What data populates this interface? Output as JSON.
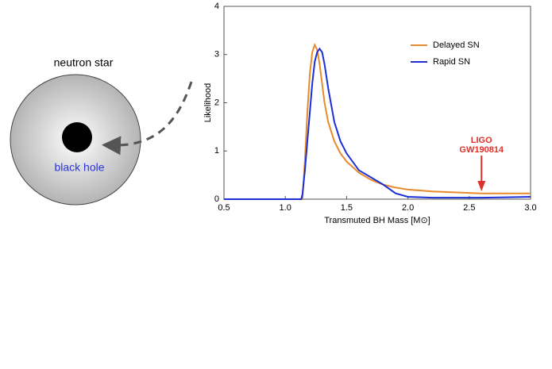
{
  "diagram": {
    "outer_label": "neutron star",
    "inner_label": "black hole"
  },
  "chart_data": {
    "type": "line",
    "x_label": "Transmuted BH Mass [M⊙]",
    "y_label": "Likelihood",
    "x": [
      0.5,
      1.0,
      1.13,
      1.14,
      1.16,
      1.18,
      1.2,
      1.22,
      1.24,
      1.26,
      1.28,
      1.3,
      1.32,
      1.35,
      1.4,
      1.45,
      1.5,
      1.6,
      1.7,
      1.8,
      1.9,
      2.0,
      2.2,
      2.4,
      2.6,
      2.8,
      3.0
    ],
    "series": [
      {
        "name": "Delayed SN",
        "color": "#e8892b",
        "values": [
          0,
          0,
          0,
          0,
          0.8,
          1.8,
          2.6,
          3.05,
          3.2,
          3.1,
          2.8,
          2.4,
          2.0,
          1.6,
          1.2,
          0.95,
          0.78,
          0.55,
          0.4,
          0.3,
          0.24,
          0.2,
          0.16,
          0.14,
          0.12,
          0.12,
          0.12
        ]
      },
      {
        "name": "Rapid SN",
        "color": "#1c2fd6",
        "values": [
          0,
          0,
          0,
          0.1,
          0.6,
          1.2,
          1.8,
          2.4,
          2.85,
          3.05,
          3.12,
          3.05,
          2.8,
          2.3,
          1.6,
          1.2,
          0.95,
          0.6,
          0.45,
          0.3,
          0.12,
          0.05,
          0.03,
          0.03,
          0.03,
          0.04,
          0.05
        ]
      }
    ],
    "xlim": [
      0.5,
      3.0
    ],
    "ylim": [
      0,
      4
    ],
    "xticks": [
      0.5,
      {
        "value": 1.0,
        "label": "1.0"
      },
      1.5,
      {
        "value": 2.0,
        "label": "2.0"
      },
      2.5,
      {
        "value": 3.0,
        "label": "3.0"
      }
    ],
    "yticks": [
      0,
      1,
      2,
      3,
      4
    ],
    "legend": "upper right",
    "annotation": {
      "lines": [
        "LIGO",
        "GW190814"
      ],
      "x": 2.6,
      "color": "#e0302a"
    }
  }
}
